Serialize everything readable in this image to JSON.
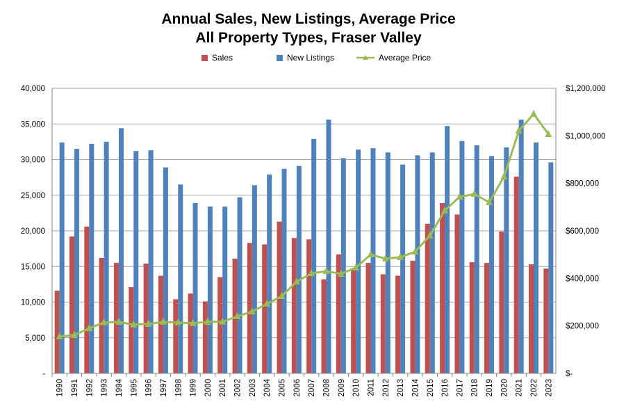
{
  "chart_data": {
    "type": "bar+line",
    "title": "Annual Sales, New Listings, Average Price",
    "subtitle": "All Property Types, Fraser Valley",
    "categories": [
      "1990",
      "1991",
      "1992",
      "1993",
      "1994",
      "1995",
      "1996",
      "1997",
      "1998",
      "1999",
      "2000",
      "2001",
      "2002",
      "2003",
      "2004",
      "2005",
      "2006",
      "2007",
      "2008",
      "2009",
      "2010",
      "2011",
      "2012",
      "2013",
      "2014",
      "2015",
      "2016",
      "2017",
      "2018",
      "2019",
      "2020",
      "2021",
      "2022",
      "2023"
    ],
    "series": [
      {
        "name": "Sales",
        "type": "bar",
        "axis": "left",
        "color": "#c0504d",
        "values": [
          11600,
          19200,
          20600,
          16200,
          15500,
          12100,
          15400,
          13700,
          10400,
          11200,
          10100,
          13500,
          16100,
          18300,
          18100,
          21300,
          19000,
          18800,
          13200,
          16700,
          14500,
          15500,
          13900,
          13700,
          15800,
          21000,
          23900,
          22300,
          15600,
          15500,
          19900,
          27600,
          15300,
          14700
        ]
      },
      {
        "name": "New Listings",
        "type": "bar",
        "axis": "left",
        "color": "#4f81bd",
        "values": [
          32400,
          31500,
          32200,
          32500,
          34400,
          31200,
          31300,
          28900,
          26500,
          23900,
          23400,
          23400,
          24700,
          26400,
          27900,
          28700,
          29100,
          32900,
          35600,
          30200,
          31400,
          31600,
          31000,
          29300,
          30600,
          31000,
          34700,
          32600,
          32000,
          30500,
          31700,
          35600,
          32400,
          29600
        ]
      },
      {
        "name": "Average Price",
        "type": "line",
        "axis": "right",
        "color": "#9bbb59",
        "values": [
          155000,
          161000,
          190000,
          214000,
          217000,
          205000,
          208000,
          217000,
          214000,
          211000,
          217000,
          217000,
          240000,
          260000,
          293000,
          325000,
          386000,
          421000,
          430000,
          419000,
          445000,
          500000,
          483000,
          489000,
          512000,
          580000,
          685000,
          743000,
          755000,
          720000,
          828000,
          1021000,
          1092000,
          1007000
        ]
      }
    ],
    "y_left": {
      "range": [
        0,
        40000
      ],
      "ticks": [
        0,
        5000,
        10000,
        15000,
        20000,
        25000,
        30000,
        35000,
        40000
      ],
      "tick_labels": [
        "-",
        "5,000",
        "10,000",
        "15,000",
        "20,000",
        "25,000",
        "30,000",
        "35,000",
        "40,000"
      ]
    },
    "y_right": {
      "range": [
        0,
        1200000
      ],
      "ticks": [
        0,
        200000,
        400000,
        600000,
        800000,
        1000000,
        1200000
      ],
      "tick_labels": [
        "$-",
        "$200,000",
        "$400,000",
        "$600,000",
        "$800,000",
        "$1,000,000",
        "$1,200,000"
      ]
    },
    "grid": true,
    "legend": "top"
  }
}
